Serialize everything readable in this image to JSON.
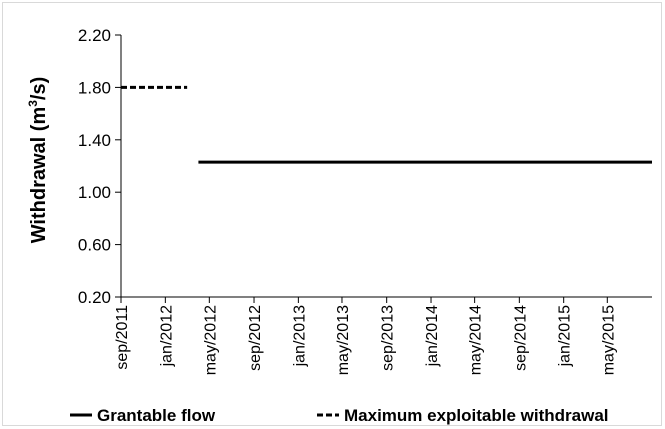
{
  "chart_data": {
    "type": "line",
    "ylabel_main": "Withdrawal (m",
    "ylabel_sup": "3",
    "ylabel_end": "/s)",
    "ylim": [
      0.2,
      2.2
    ],
    "yticks": [
      "0.20",
      "0.60",
      "1.00",
      "1.40",
      "1.80",
      "2.20"
    ],
    "ytick_values": [
      0.2,
      0.6,
      1.0,
      1.4,
      1.8,
      2.2
    ],
    "xlim": [
      "2011-09-01",
      "2015-09-01"
    ],
    "xticks": [
      "sep/2011",
      "jan/2012",
      "may/2012",
      "sep/2012",
      "jan/2013",
      "may/2013",
      "sep/2013",
      "jan/2014",
      "may/2014",
      "sep/2014",
      "jan/2015",
      "may/2015"
    ],
    "xtick_dates": [
      "2011-09-01",
      "2012-01-01",
      "2012-05-01",
      "2012-09-01",
      "2013-01-01",
      "2013-05-01",
      "2013-09-01",
      "2014-01-01",
      "2014-05-01",
      "2014-09-01",
      "2015-01-01",
      "2015-05-01"
    ],
    "grid": false,
    "legend_position": "bottom",
    "series": [
      {
        "name": "Grantable flow",
        "style": "solid",
        "color": "#000000",
        "x": [
          "2012-04-01",
          "2015-09-01"
        ],
        "y": [
          1.23,
          1.23
        ]
      },
      {
        "name": "Maximum exploitable withdrawal",
        "style": "dashed",
        "color": "#000000",
        "x": [
          "2011-09-01",
          "2012-03-01"
        ],
        "y": [
          1.8,
          1.8
        ]
      }
    ]
  }
}
